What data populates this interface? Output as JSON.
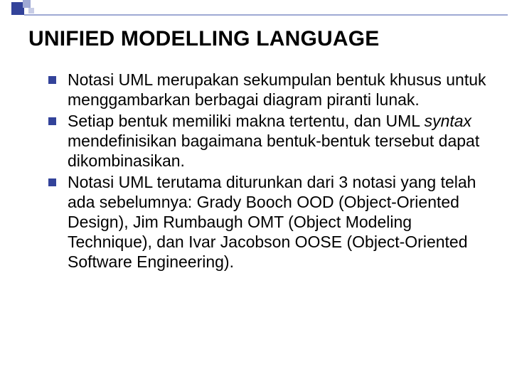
{
  "slide": {
    "title": "UNIFIED MODELLING LANGUAGE",
    "bullets": [
      {
        "text_pre": "Notasi UML merupakan sekumpulan bentuk khusus untuk menggambarkan berbagai diagram piranti lunak.",
        "italic": "",
        "text_post": ""
      },
      {
        "text_pre": "Setiap bentuk memiliki makna tertentu, dan UML ",
        "italic": "syntax",
        "text_post": " mendefinisikan bagaimana bentuk-bentuk tersebut dapat dikombinasikan."
      },
      {
        "text_pre": "Notasi UML terutama diturunkan dari 3 notasi yang telah ada sebelumnya: Grady Booch OOD (Object-Oriented Design), Jim Rumbaugh OMT (Object Modeling Technique), dan Ivar Jacobson OOSE (Object-Oriented Software Engineering).",
        "italic": "",
        "text_post": ""
      }
    ]
  },
  "style": {
    "title_fontsize": 30,
    "title_color": "#000000",
    "body_fontsize": 23,
    "body_color": "#000000",
    "bullet_color": "#33439a",
    "bullet_size": 11,
    "background_color": "#ffffff",
    "deco_primary": "#33439a",
    "deco_secondary": "#9fa9d4",
    "deco_tertiary": "#c8cde6"
  }
}
